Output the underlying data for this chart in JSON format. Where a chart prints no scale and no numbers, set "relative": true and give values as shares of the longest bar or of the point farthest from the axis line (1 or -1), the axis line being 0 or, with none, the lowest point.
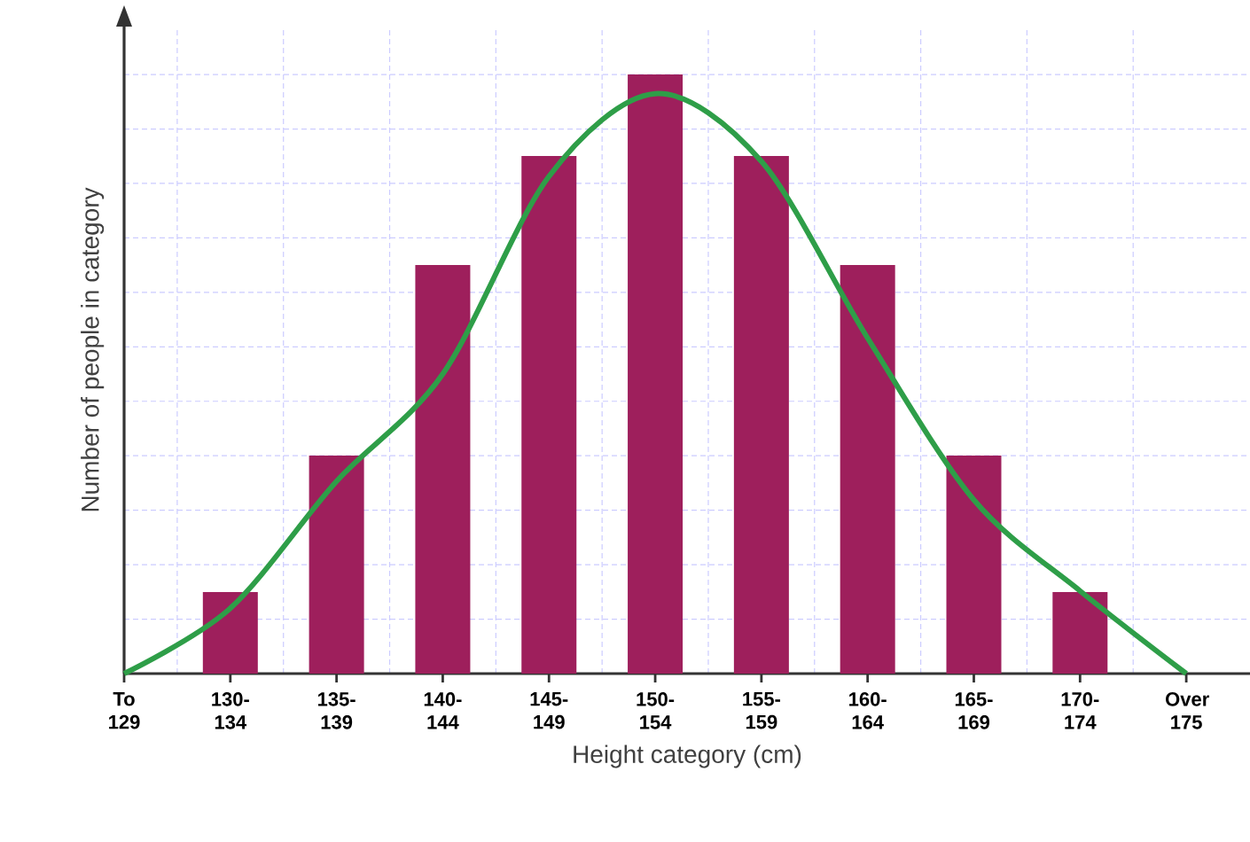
{
  "chart_data": {
    "type": "bar",
    "xlabel": "Height category (cm)",
    "ylabel": "Number of people in category",
    "categories": [
      "To 129",
      "130-134",
      "135-139",
      "140-144",
      "145-149",
      "150-154",
      "155-159",
      "160-164",
      "165-169",
      "170-174",
      "Over 175"
    ],
    "relative": true,
    "grid": true,
    "series": [
      {
        "color": "#9e1f5c",
        "values": [
          0,
          0.136,
          0.364,
          0.682,
          0.864,
          1,
          0.864,
          0.682,
          0.364,
          0.136,
          0
        ]
      },
      {
        "type": "line",
        "color": "#2e9e48",
        "values": [
          0,
          0.109,
          0.321,
          0.5,
          0.83,
          0.968,
          0.855,
          0.56,
          0.29,
          0.138,
          0
        ]
      }
    ]
  }
}
